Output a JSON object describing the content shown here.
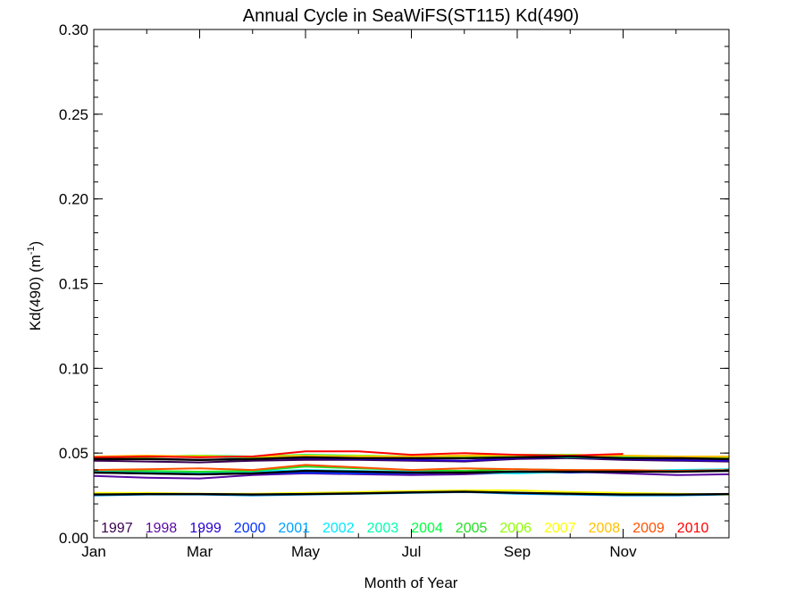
{
  "chart_data": {
    "type": "line",
    "title": "Annual Cycle in SeaWiFS(ST115) Kd(490)",
    "xlabel": "Month of Year",
    "ylabel_main": "Kd(490) (m",
    "ylabel_sup": "-1",
    "ylabel_close": ")",
    "xlim": [
      1,
      13
    ],
    "ylim": [
      0.0,
      0.3
    ],
    "x_ticks": [
      {
        "value": 1,
        "label": "Jan"
      },
      {
        "value": 3,
        "label": "Mar"
      },
      {
        "value": 5,
        "label": "May"
      },
      {
        "value": 7,
        "label": "Jul"
      },
      {
        "value": 9,
        "label": "Sep"
      },
      {
        "value": 11,
        "label": "Nov"
      }
    ],
    "y_ticks": [
      {
        "value": 0.0,
        "label": "0.00"
      },
      {
        "value": 0.05,
        "label": "0.05"
      },
      {
        "value": 0.1,
        "label": "0.10"
      },
      {
        "value": 0.15,
        "label": "0.15"
      },
      {
        "value": 0.2,
        "label": "0.20"
      },
      {
        "value": 0.25,
        "label": "0.25"
      },
      {
        "value": 0.3,
        "label": "0.30"
      }
    ],
    "legend_position": "bottom, inside plot",
    "grid": false,
    "years": [
      {
        "label": "1997",
        "color": "#3a0050"
      },
      {
        "label": "1998",
        "color": "#5a0aa0"
      },
      {
        "label": "1999",
        "color": "#2800d0"
      },
      {
        "label": "2000",
        "color": "#0030ff"
      },
      {
        "label": "2001",
        "color": "#00a0ff"
      },
      {
        "label": "2002",
        "color": "#00e8ff"
      },
      {
        "label": "2003",
        "color": "#00ffb0"
      },
      {
        "label": "2004",
        "color": "#00ff40"
      },
      {
        "label": "2005",
        "color": "#20e020"
      },
      {
        "label": "2006",
        "color": "#90ff00"
      },
      {
        "label": "2007",
        "color": "#ffff00"
      },
      {
        "label": "2008",
        "color": "#ffc000"
      },
      {
        "label": "2009",
        "color": "#ff5000"
      },
      {
        "label": "2010",
        "color": "#ff0000"
      }
    ],
    "x": [
      1,
      2,
      3,
      4,
      5,
      6,
      7,
      8,
      9,
      10,
      11,
      12,
      13
    ],
    "series": [
      {
        "color": "#3a0050",
        "values": [
          0.0455,
          0.045,
          0.0445,
          0.0455,
          0.046,
          0.046,
          0.0455,
          0.045,
          0.0465,
          0.047,
          0.046,
          0.0455,
          0.045
        ]
      },
      {
        "color": "#5a0aa0",
        "values": [
          0.0365,
          0.0355,
          0.035,
          0.037,
          0.038,
          0.0375,
          0.037,
          0.0375,
          0.0385,
          0.039,
          0.038,
          0.037,
          0.0375
        ]
      },
      {
        "color": "#2800d0",
        "values": [
          0.0465,
          0.0465,
          0.046,
          0.0465,
          0.047,
          0.0465,
          0.046,
          0.0455,
          0.047,
          0.0475,
          0.0465,
          0.046,
          0.0455
        ]
      },
      {
        "color": "#0030ff",
        "values": [
          0.0385,
          0.038,
          0.0375,
          0.038,
          0.0385,
          0.038,
          0.038,
          0.0385,
          0.039,
          0.0385,
          0.039,
          0.0395,
          0.04
        ]
      },
      {
        "color": "#00a0ff",
        "values": [
          0.025,
          0.0255,
          0.0255,
          0.025,
          0.0255,
          0.026,
          0.0265,
          0.027,
          0.026,
          0.0255,
          0.025,
          0.025,
          0.0255
        ]
      },
      {
        "color": "#00e8ff",
        "values": [
          0.0395,
          0.039,
          0.0385,
          0.039,
          0.04,
          0.0395,
          0.039,
          0.0385,
          0.038,
          0.039,
          0.0395,
          0.04,
          0.0405
        ]
      },
      {
        "color": "#00ffb0",
        "values": [
          0.047,
          0.0475,
          0.048,
          0.047,
          0.048,
          0.0475,
          0.047,
          0.0475,
          0.048,
          0.0475,
          0.047,
          0.0475,
          0.047
        ]
      },
      {
        "color": "#00ff40",
        "values": [
          0.0475,
          0.048,
          0.0485,
          0.048,
          0.049,
          0.0485,
          0.048,
          0.0485,
          0.049,
          0.049,
          0.048,
          0.0475,
          0.047
        ]
      },
      {
        "color": "#20e020",
        "values": [
          0.04,
          0.0395,
          0.039,
          0.0395,
          0.042,
          0.041,
          0.04,
          0.0395,
          0.0405,
          0.04,
          0.0395,
          0.039,
          0.0395
        ]
      },
      {
        "color": "#90ff00",
        "values": [
          0.047,
          0.0475,
          0.0485,
          0.0475,
          0.048,
          0.0485,
          0.048,
          0.048,
          0.0485,
          0.049,
          0.0485,
          0.048,
          0.0475
        ]
      },
      {
        "color": "#ffff00",
        "values": [
          0.0265,
          0.0265,
          0.026,
          0.026,
          0.0265,
          0.027,
          0.0275,
          0.028,
          0.028,
          0.027,
          0.0265,
          0.026,
          0.0255
        ]
      },
      {
        "color": "#ffc000",
        "values": [
          0.048,
          0.0485,
          0.048,
          0.048,
          0.0485,
          0.048,
          0.048,
          0.0485,
          0.049,
          0.0485,
          0.0485,
          0.048,
          0.048
        ]
      },
      {
        "color": "#ff5000",
        "values": [
          0.04,
          0.0405,
          0.041,
          0.04,
          0.043,
          0.0415,
          0.04,
          0.041,
          0.0405,
          0.04,
          0.04,
          0.0395,
          0.04
        ]
      },
      {
        "color": "#ff0000",
        "values": [
          0.0475,
          0.048,
          0.0475,
          0.048,
          0.051,
          0.051,
          0.049,
          0.05,
          0.049,
          0.0485,
          0.0495,
          null,
          null
        ]
      }
    ],
    "mean_color": "#000000",
    "mean_series": [
      {
        "values": [
          0.0465,
          0.0465,
          0.046,
          0.0465,
          0.0475,
          0.047,
          0.047,
          0.047,
          0.0475,
          0.048,
          0.047,
          0.047,
          0.0465
        ]
      },
      {
        "values": [
          0.0385,
          0.038,
          0.0375,
          0.038,
          0.0395,
          0.039,
          0.0385,
          0.0385,
          0.039,
          0.039,
          0.039,
          0.039,
          0.0395
        ]
      },
      {
        "values": [
          0.0255,
          0.0258,
          0.0258,
          0.0255,
          0.0258,
          0.0262,
          0.0268,
          0.0272,
          0.0265,
          0.026,
          0.0255,
          0.0255,
          0.0258
        ]
      }
    ]
  }
}
